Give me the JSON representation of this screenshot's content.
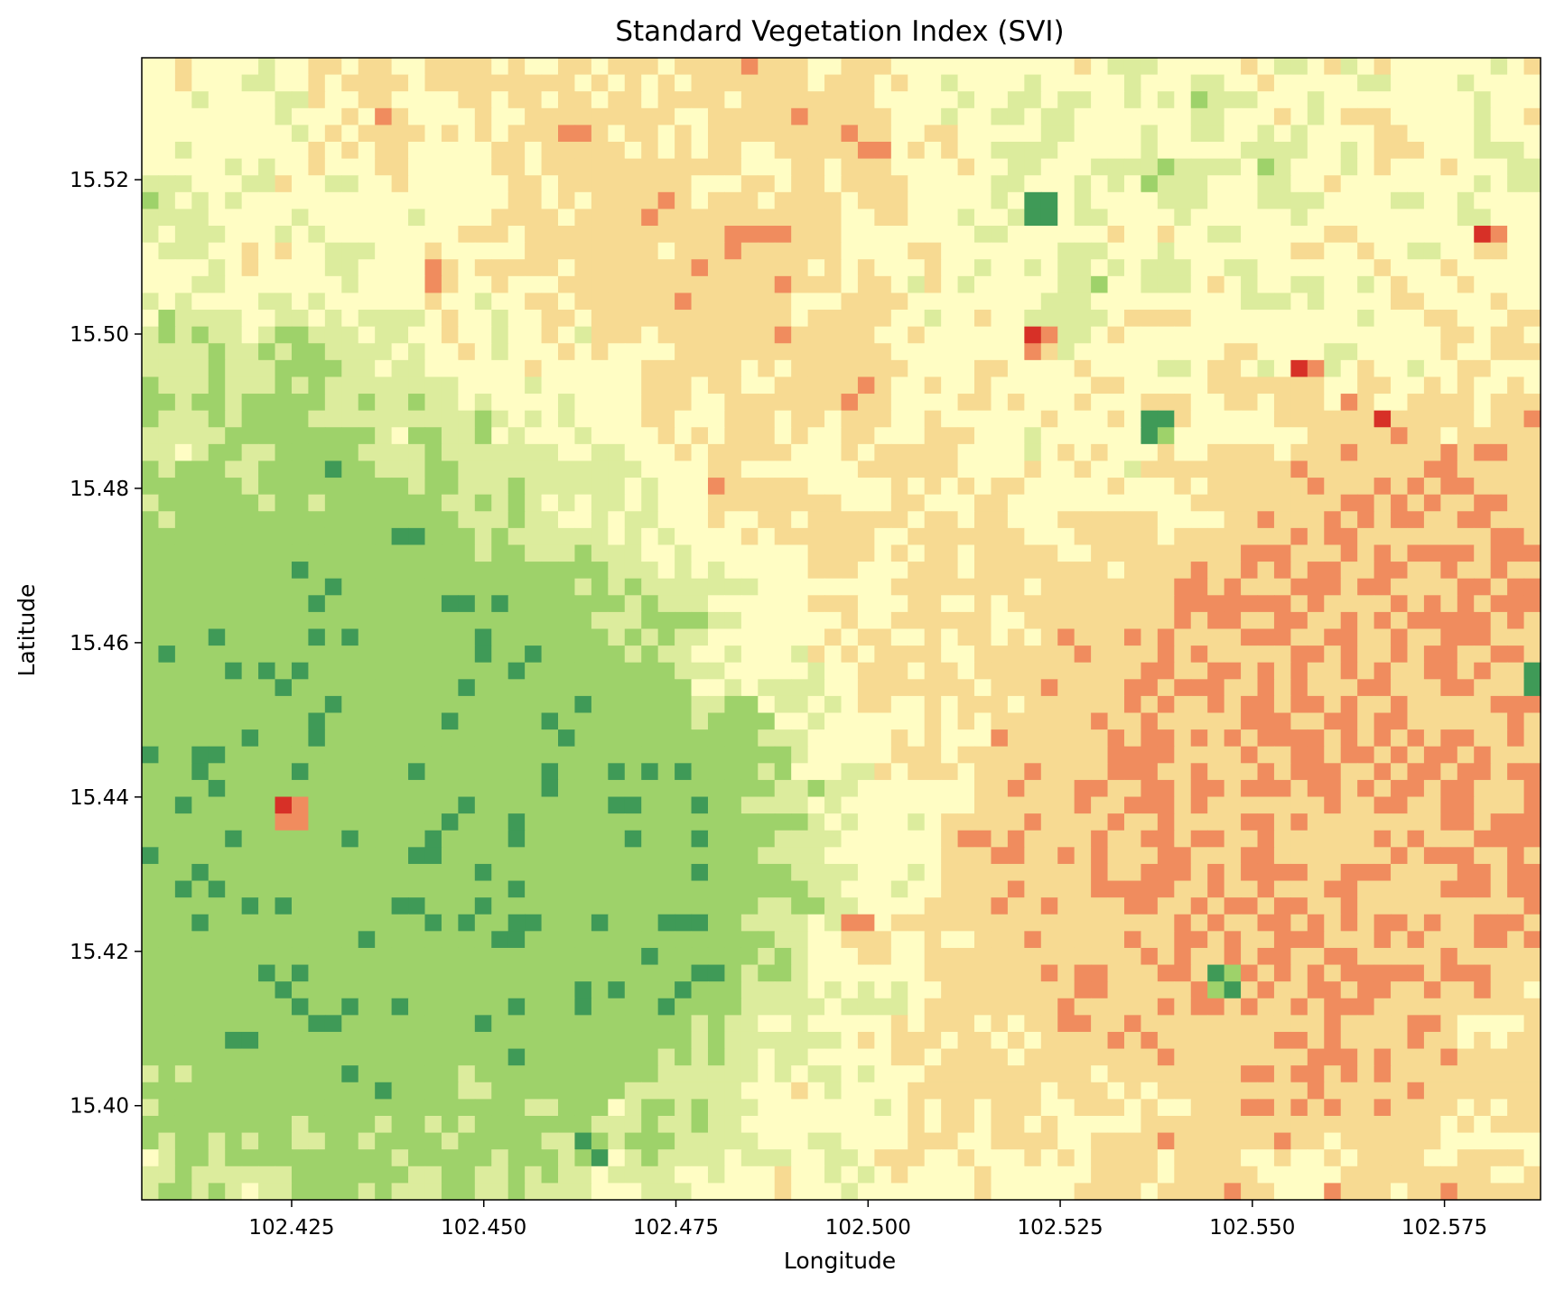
{
  "chart_data": {
    "type": "heatmap",
    "title": "Standard Vegetation Index (SVI)",
    "xlabel": "Longitude",
    "ylabel": "Latitude",
    "xlim": [
      102.4055,
      102.5875
    ],
    "ylim": [
      15.3878,
      15.5358
    ],
    "x_ticks": [
      102.425,
      102.45,
      102.475,
      102.5,
      102.525,
      102.55,
      102.575
    ],
    "x_tick_labels": [
      "102.425",
      "102.450",
      "102.475",
      "102.500",
      "102.525",
      "102.550",
      "102.575"
    ],
    "y_ticks": [
      15.4,
      15.42,
      15.44,
      15.46,
      15.48,
      15.5,
      15.52
    ],
    "y_tick_labels": [
      "15.40",
      "15.42",
      "15.44",
      "15.46",
      "15.48",
      "15.50",
      "15.52"
    ],
    "colormap": "RdYlGn",
    "colormap_levels": [
      "#d73027",
      "#f08c5e",
      "#f7da92",
      "#fffdc4",
      "#dcec9d",
      "#9ed26a",
      "#3f9a57"
    ],
    "grid": false,
    "legend": "none",
    "cells": {
      "cols": 84,
      "rows": 68,
      "seed": 20240517,
      "noise": [
        {
          "x": 102.48,
          "y": 15.5,
          "r": 0.05,
          "w": -0.7
        },
        {
          "x": 102.55,
          "y": 15.43,
          "r": 0.04,
          "w": -0.9
        },
        {
          "x": 102.44,
          "y": 15.46,
          "r": 0.05,
          "w": 0.9
        },
        {
          "x": 102.43,
          "y": 15.42,
          "r": 0.04,
          "w": 0.6
        },
        {
          "x": 102.52,
          "y": 15.51,
          "r": 0.03,
          "w": 0.4
        },
        {
          "x": 102.58,
          "y": 15.46,
          "r": 0.03,
          "w": -0.7
        },
        {
          "x": 102.47,
          "y": 15.43,
          "r": 0.02,
          "w": 0.8
        }
      ],
      "anomalies": [
        {
          "x": 102.438,
          "y": 15.529,
          "level": 1
        },
        {
          "x": 102.444,
          "y": 15.508,
          "level": 1
        },
        {
          "x": 102.522,
          "y": 15.5,
          "level": 0
        },
        {
          "x": 102.556,
          "y": 15.496,
          "level": 0
        },
        {
          "x": 102.566,
          "y": 15.488,
          "level": 0
        },
        {
          "x": 102.581,
          "y": 15.512,
          "level": 0
        },
        {
          "x": 102.423,
          "y": 15.439,
          "level": 0
        },
        {
          "x": 102.467,
          "y": 15.439,
          "level": 6
        },
        {
          "x": 102.536,
          "y": 15.49,
          "level": 6
        },
        {
          "x": 102.454,
          "y": 15.406,
          "level": 6
        },
        {
          "x": 102.586,
          "y": 15.456,
          "level": 6
        },
        {
          "x": 102.521,
          "y": 15.518,
          "level": 6
        },
        {
          "x": 102.478,
          "y": 15.434,
          "level": 6
        },
        {
          "x": 102.497,
          "y": 15.423,
          "level": 1
        },
        {
          "x": 102.586,
          "y": 15.466,
          "level": 1
        },
        {
          "x": 102.52,
          "y": 15.442,
          "level": 1
        },
        {
          "x": 102.546,
          "y": 15.418,
          "level": 6
        },
        {
          "x": 102.464,
          "y": 15.396,
          "level": 6
        }
      ]
    }
  }
}
